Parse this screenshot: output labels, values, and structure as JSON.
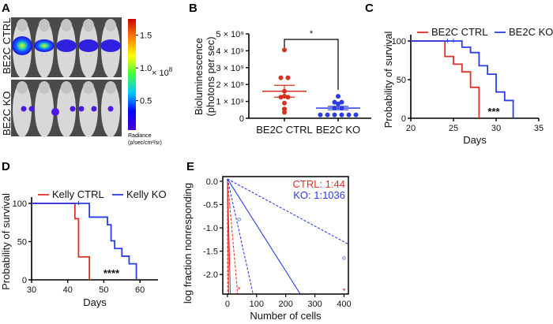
{
  "panels": {
    "a": "A",
    "b": "B",
    "c": "C",
    "d": "D",
    "e": "E"
  },
  "chart_data": [
    {
      "panel": "A",
      "type": "image",
      "row_labels": [
        "BE2C CTRL",
        "BE2C  KO"
      ],
      "colorbar": {
        "ticks": [
          "1.5",
          "1.0",
          "0.5"
        ],
        "tick_values": [
          1.5,
          1.0,
          0.5
        ],
        "range": [
          0.05,
          1.75
        ],
        "multiplier": "× 10",
        "multiplier_exp": "8",
        "label_line1": "Radiance",
        "label_line2": "(p/sec/cm²/sr)",
        "colors": [
          "#4b00d8",
          "#0000ff",
          "#00c8ff",
          "#40ff40",
          "#ffff00",
          "#ff8000",
          "#d00000"
        ]
      }
    },
    {
      "panel": "B",
      "type": "scatter",
      "ylabel_line1": "Bioluminescence",
      "ylabel_line2": "(photons per sec)",
      "ylim": [
        0,
        5000000000.0
      ],
      "yticks": [
        0,
        1000000000.0,
        2000000000.0,
        3000000000.0,
        4000000000.0,
        5000000000.0
      ],
      "ytick_labels": [
        "0",
        "1 × 10⁹",
        "2 × 10⁹",
        "3 × 10⁹",
        "4 × 10⁹",
        "5 × 10⁹"
      ],
      "categories": [
        "BE2C CTRL",
        "BE2C KO"
      ],
      "significance": "*",
      "series": [
        {
          "color": "#d2321e",
          "values": [
            4050000000.0,
            2400000000.0,
            2400000000.0,
            1600000000.0,
            1300000000.0,
            1250000000.0,
            1250000000.0,
            900000000.0,
            550000000.0,
            350000000.0
          ],
          "mean": 1600000000.0,
          "sem": 350000000.0
        },
        {
          "color": "#2a3ce6",
          "values": [
            1300000000.0,
            950000000.0,
            950000000.0,
            850000000.0,
            600000000.0,
            600000000.0,
            200000000.0,
            200000000.0,
            200000000.0,
            200000000.0,
            200000000.0,
            200000000.0
          ],
          "mean": 600000000.0,
          "sem": 100000000.0
        }
      ]
    },
    {
      "panel": "C",
      "type": "line",
      "xlabel": "Days",
      "ylabel": "Probability of survival",
      "xlim": [
        20,
        35
      ],
      "xticks": [
        20,
        25,
        30,
        35
      ],
      "ylim": [
        0,
        100
      ],
      "yticks": [
        0,
        50,
        100
      ],
      "legend": "top",
      "significance": "***",
      "series": [
        {
          "name": "BE2C CTRL",
          "color": "#e0302a",
          "steps": [
            [
              20,
              100
            ],
            [
              24,
              80
            ],
            [
              25,
              70
            ],
            [
              26,
              60
            ],
            [
              27,
              40
            ],
            [
              28,
              0
            ]
          ],
          "censored": []
        },
        {
          "name": "BE2C KO",
          "color": "#2a3ce6",
          "steps": [
            [
              20,
              100
            ],
            [
              26,
              92
            ],
            [
              27,
              85
            ],
            [
              28,
              68
            ],
            [
              29,
              57
            ],
            [
              30,
              34
            ],
            [
              31,
              23
            ],
            [
              32,
              0
            ]
          ],
          "censored": [
            24.3,
            25
          ]
        }
      ]
    },
    {
      "panel": "D",
      "type": "line",
      "xlabel": "Days",
      "ylabel": "Probability of survival",
      "xlim": [
        30,
        65
      ],
      "xticks": [
        30,
        40,
        50,
        60
      ],
      "ylim": [
        0,
        100
      ],
      "yticks": [
        0,
        50,
        100
      ],
      "legend": "top",
      "significance": "****",
      "series": [
        {
          "name": "Kelly CTRL",
          "color": "#e0302a",
          "steps": [
            [
              30,
              100
            ],
            [
              42,
              80
            ],
            [
              43,
              30
            ],
            [
              46,
              0
            ]
          ],
          "censored": []
        },
        {
          "name": "Kelly KO",
          "color": "#2a3ce6",
          "steps": [
            [
              30,
              100
            ],
            [
              46,
              82
            ],
            [
              51,
              72
            ],
            [
              52,
              51
            ],
            [
              53,
              41
            ],
            [
              55,
              31
            ],
            [
              57,
              21
            ],
            [
              59,
              0
            ]
          ],
          "censored": [
            43
          ]
        }
      ]
    },
    {
      "panel": "E",
      "type": "line",
      "xlabel": "Number of cells",
      "ylabel": "log fraction nonresponding",
      "xlim": [
        -16,
        415
      ],
      "xticks": [
        0,
        100,
        200,
        300,
        400
      ],
      "ylim": [
        -2.42,
        0.1
      ],
      "yticks": [
        0.0,
        -0.5,
        -1.0,
        -1.5,
        -2.0
      ],
      "ytick_labels": [
        "0.0",
        "-0.5",
        "-1.0",
        "-1.5",
        "-2.0"
      ],
      "annotations": [
        {
          "text": "CTRL: 1:44",
          "color": "#e0302a"
        },
        {
          "text": "KO: 1:1036",
          "color": "#2a3ce6"
        }
      ],
      "lines": [
        {
          "group": "CTRL",
          "style": "solid",
          "color": "#e0302a",
          "x": [
            0,
            4
          ],
          "y": [
            0.05,
            -2.42
          ]
        },
        {
          "group": "CTRL",
          "style": "solid",
          "color": "#e0302a",
          "x": [
            0,
            10
          ],
          "y": [
            0.05,
            -2.42
          ]
        },
        {
          "group": "CTRL",
          "style": "dashed",
          "color": "#e0302a",
          "x": [
            0,
            1
          ],
          "y": [
            0.05,
            -2.42
          ]
        },
        {
          "group": "CTRL",
          "style": "dashed",
          "color": "#e0302a",
          "x": [
            0,
            35
          ],
          "y": [
            0.05,
            -2.42
          ]
        },
        {
          "group": "KO",
          "style": "solid",
          "color": "#2a3ce6",
          "x": [
            0,
            250
          ],
          "y": [
            0.05,
            -2.42
          ]
        },
        {
          "group": "KO",
          "style": "dashed",
          "color": "#2a3ce6",
          "x": [
            0,
            88
          ],
          "y": [
            0.05,
            -2.42
          ]
        },
        {
          "group": "KO",
          "style": "dashed",
          "color": "#2a3ce6",
          "x": [
            0,
            415
          ],
          "y": [
            0.05,
            -1.35
          ]
        }
      ],
      "points": [
        {
          "group": "CTRL",
          "marker": "circle",
          "x": 4,
          "y": -0.5
        },
        {
          "group": "CTRL",
          "marker": "triangle",
          "x": 40,
          "y": -2.3
        },
        {
          "group": "CTRL",
          "marker": "triangle",
          "x": 400,
          "y": -2.33
        },
        {
          "group": "KO",
          "marker": "circle",
          "x": 40,
          "y": -0.82
        },
        {
          "group": "KO",
          "marker": "circle",
          "x": 400,
          "y": -1.65
        }
      ]
    }
  ]
}
